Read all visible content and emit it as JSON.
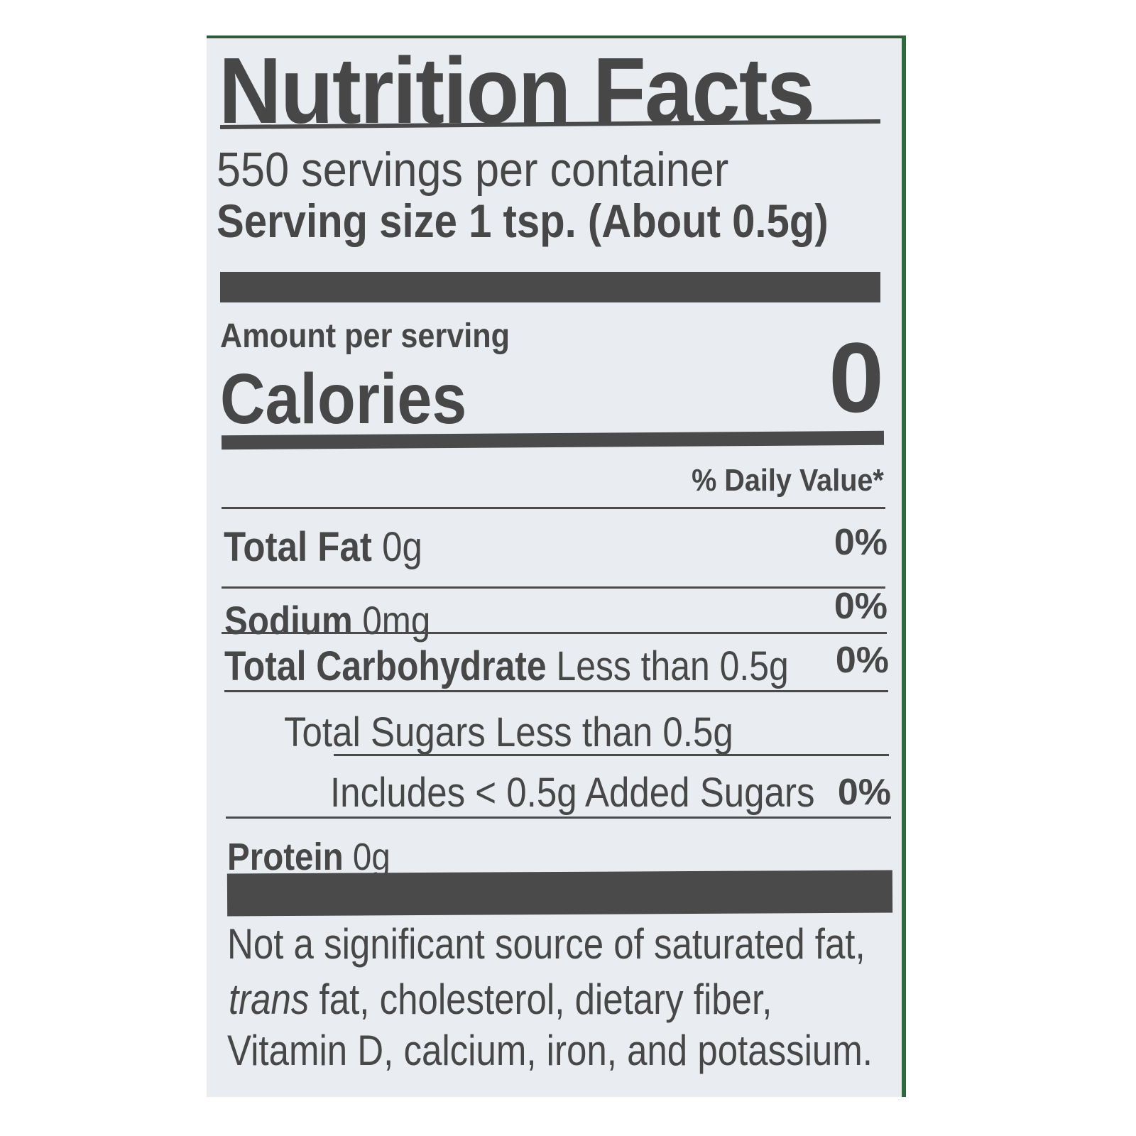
{
  "label": {
    "title": "Nutrition Facts",
    "servings_per_container": "550 servings per container",
    "serving_size_label": "Serving size",
    "serving_size_value": "1 tsp. (About 0.5g)",
    "amount_per_serving": "Amount per serving",
    "calories_label": "Calories",
    "calories_value": "0",
    "daily_value_header": "% Daily Value*",
    "nutrients": [
      {
        "name": "Total Fat",
        "amount": "0g",
        "dv": "0%"
      },
      {
        "name": "Sodium",
        "amount": "0mg",
        "dv": "0%"
      },
      {
        "name": "Total Carbohydrate",
        "amount": "Less than 0.5g",
        "dv": "0%"
      },
      {
        "name": "Total Sugars Less than 0.5g"
      },
      {
        "name": "Includes < 0.5g Added Sugars",
        "dv": "0%"
      },
      {
        "name": "Protein",
        "amount": "0g"
      }
    ],
    "footnote": {
      "line1": "Not a significant source of saturated fat,",
      "trans": "trans",
      "line2": "fat, cholesterol, dietary fiber,",
      "line3": "Vitamin D, calcium, iron, and potassium."
    }
  },
  "colors": {
    "text": "#474747",
    "label_bg": "#e9ecf1",
    "border_green": "#2e6b3f"
  }
}
